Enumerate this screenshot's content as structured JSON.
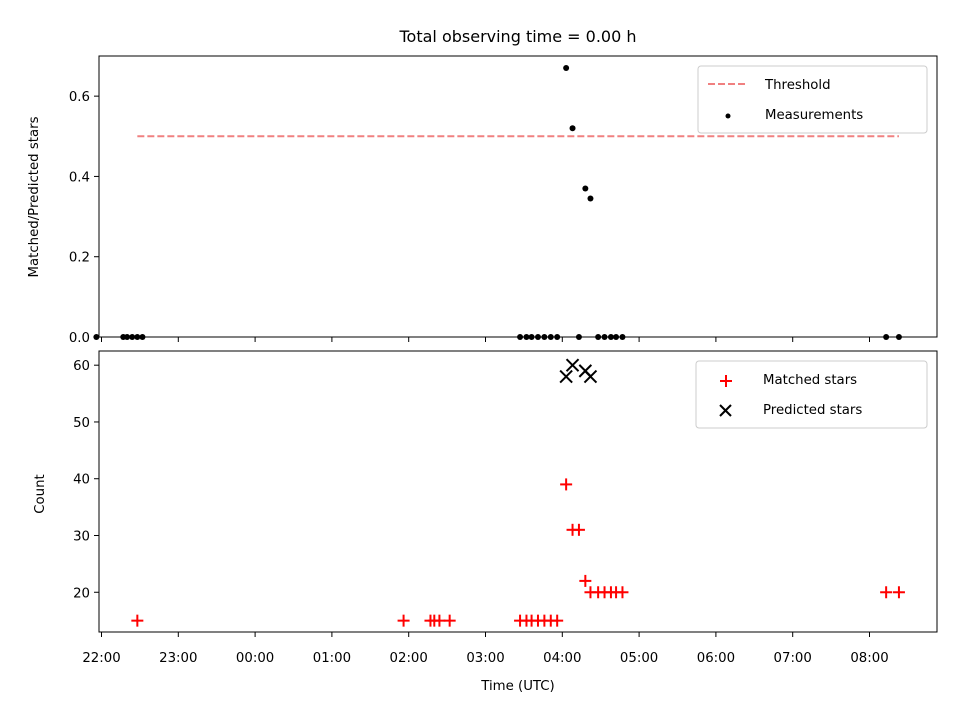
{
  "chart_data": {
    "type": "scatter",
    "title": "Total observing time = 0.00 h",
    "xlabel": "Time (UTC)",
    "x_ticks": [
      "22:00",
      "23:00",
      "00:00",
      "01:00",
      "02:00",
      "03:00",
      "04:00",
      "05:00",
      "06:00",
      "07:00",
      "08:00"
    ],
    "top": {
      "ylabel": "Matched/Predicted stars",
      "ylim": [
        0,
        0.7
      ],
      "y_ticks": [
        "0.0",
        "0.2",
        "0.4",
        "0.6"
      ],
      "threshold": {
        "name": "Threshold",
        "value": 0.5,
        "x_start": "22:28",
        "x_end": "08:23",
        "color": "#f08080"
      },
      "measurements": {
        "name": "Measurements",
        "color": "#000000",
        "points": [
          [
            "22:28",
            0.0
          ],
          [
            "21:56",
            0.0
          ],
          [
            "22:17",
            0.0
          ],
          [
            "22:20",
            0.0
          ],
          [
            "22:24",
            0.0
          ],
          [
            "22:32",
            0.0
          ],
          [
            "03:27",
            0.0
          ],
          [
            "03:32",
            0.0
          ],
          [
            "03:36",
            0.0
          ],
          [
            "03:41",
            0.0
          ],
          [
            "03:46",
            0.0
          ],
          [
            "03:51",
            0.0
          ],
          [
            "03:56",
            0.0
          ],
          [
            "04:03",
            0.67
          ],
          [
            "04:08",
            0.52
          ],
          [
            "04:13",
            0.0
          ],
          [
            "04:18",
            0.37
          ],
          [
            "04:22",
            0.345
          ],
          [
            "04:28",
            0.0
          ],
          [
            "04:33",
            0.0
          ],
          [
            "04:38",
            0.0
          ],
          [
            "04:42",
            0.0
          ],
          [
            "04:47",
            0.0
          ],
          [
            "08:13",
            0.0
          ],
          [
            "08:23",
            0.0
          ]
        ]
      },
      "legend": [
        "Threshold",
        "Measurements"
      ]
    },
    "bottom": {
      "ylabel": "Count",
      "ylim": [
        13,
        62.5
      ],
      "y_ticks": [
        "20",
        "30",
        "40",
        "50",
        "60"
      ],
      "matched": {
        "name": "Matched stars",
        "color": "#ff0000",
        "points": [
          [
            "22:28",
            15
          ],
          [
            "01:56",
            15
          ],
          [
            "02:17",
            15
          ],
          [
            "02:20",
            15
          ],
          [
            "02:24",
            15
          ],
          [
            "02:32",
            15
          ],
          [
            "03:27",
            15
          ],
          [
            "03:32",
            15
          ],
          [
            "03:36",
            15
          ],
          [
            "03:41",
            15
          ],
          [
            "03:46",
            15
          ],
          [
            "03:51",
            15
          ],
          [
            "03:56",
            15
          ],
          [
            "04:03",
            39
          ],
          [
            "04:08",
            31
          ],
          [
            "04:13",
            31
          ],
          [
            "04:18",
            22
          ],
          [
            "04:22",
            20
          ],
          [
            "04:28",
            20
          ],
          [
            "04:33",
            20
          ],
          [
            "04:38",
            20
          ],
          [
            "04:42",
            20
          ],
          [
            "04:47",
            20
          ],
          [
            "08:13",
            20
          ],
          [
            "08:23",
            20
          ]
        ]
      },
      "predicted": {
        "name": "Predicted stars",
        "color": "#000000",
        "points": [
          [
            "04:03",
            58
          ],
          [
            "04:08",
            60
          ],
          [
            "04:18",
            59
          ],
          [
            "04:22",
            58
          ]
        ]
      },
      "legend": [
        "Matched stars",
        "Predicted stars"
      ]
    }
  }
}
